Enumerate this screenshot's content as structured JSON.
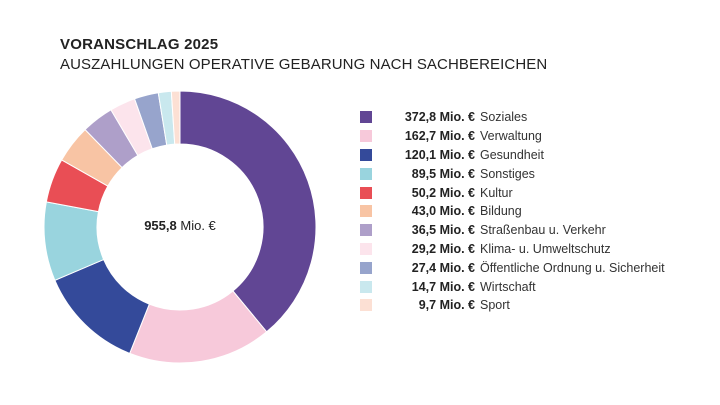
{
  "title": "VORANSCHLAG 2025",
  "subtitle": "AUSZAHLUNGEN OPERATIVE GEBARUNG NACH SACHBEREICHEN",
  "center": {
    "value": "955,8",
    "unit": "Mio. €"
  },
  "chart_data": {
    "type": "pie",
    "donut": true,
    "title": "VORANSCHLAG 2025",
    "subtitle": "AUSZAHLUNGEN OPERATIVE GEBARUNG NACH SACHBEREICHEN",
    "total": 955.8,
    "unit": "Mio. €",
    "legend_position": "right",
    "slices": [
      {
        "label": "Soziales",
        "value": 372.8,
        "display": "372,8 Mio. €",
        "color": "#614694"
      },
      {
        "label": "Verwaltung",
        "value": 162.7,
        "display": "162,7 Mio. €",
        "color": "#f7c9da"
      },
      {
        "label": "Gesundheit",
        "value": 120.1,
        "display": "120,1 Mio. €",
        "color": "#344a9a"
      },
      {
        "label": "Sonstiges",
        "value": 89.5,
        "display": "89,5 Mio. €",
        "color": "#99d4de"
      },
      {
        "label": "Kultur",
        "value": 50.2,
        "display": "50,2 Mio. €",
        "color": "#e94e55"
      },
      {
        "label": "Bildung",
        "value": 43.0,
        "display": "43,0 Mio. €",
        "color": "#f8c4a4"
      },
      {
        "label": "Straßenbau u. Verkehr",
        "value": 36.5,
        "display": "36,5 Mio. €",
        "color": "#ae9fc9"
      },
      {
        "label": "Klima- u. Umweltschutz",
        "value": 29.2,
        "display": "29,2 Mio. €",
        "color": "#fce4ec"
      },
      {
        "label": "Öffentliche Ordnung u. Sicherheit",
        "value": 27.4,
        "display": "27,4 Mio. €",
        "color": "#97a4cc"
      },
      {
        "label": "Wirtschaft",
        "value": 14.7,
        "display": "14,7 Mio. €",
        "color": "#c9e8ee"
      },
      {
        "label": "Sport",
        "value": 9.7,
        "display": "9,7 Mio. €",
        "color": "#fce0d4"
      }
    ]
  }
}
